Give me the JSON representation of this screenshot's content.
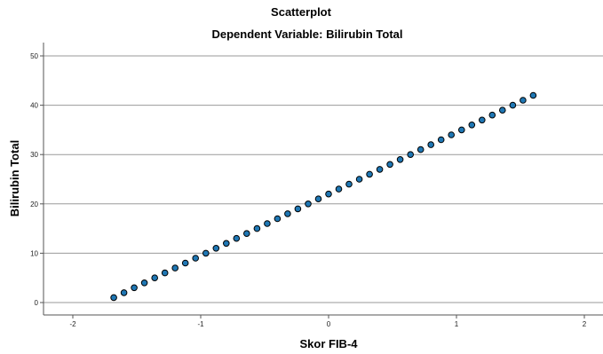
{
  "chart_data": {
    "type": "scatter",
    "title": "Scatterplot",
    "subtitle": "Dependent Variable: Bilirubin Total",
    "xlabel": "Skor FIB-4",
    "ylabel": "Bilirubin Total",
    "xlim": [
      -2,
      2
    ],
    "ylim": [
      0,
      50
    ],
    "xticks": [
      -2,
      -1,
      0,
      1,
      2
    ],
    "yticks": [
      0,
      10,
      20,
      30,
      40,
      50
    ],
    "grid": {
      "y": true,
      "x": false
    },
    "legend": "none",
    "series": [
      {
        "color": "#1f77b4",
        "edge_color": "#000000",
        "points": [
          {
            "x": -1.68,
            "y": 1
          },
          {
            "x": -1.6,
            "y": 2
          },
          {
            "x": -1.52,
            "y": 3
          },
          {
            "x": -1.44,
            "y": 4
          },
          {
            "x": -1.36,
            "y": 5
          },
          {
            "x": -1.28,
            "y": 6
          },
          {
            "x": -1.2,
            "y": 7
          },
          {
            "x": -1.12,
            "y": 8
          },
          {
            "x": -1.04,
            "y": 9
          },
          {
            "x": -0.96,
            "y": 10
          },
          {
            "x": -0.88,
            "y": 11
          },
          {
            "x": -0.8,
            "y": 12
          },
          {
            "x": -0.72,
            "y": 13
          },
          {
            "x": -0.64,
            "y": 14
          },
          {
            "x": -0.56,
            "y": 15
          },
          {
            "x": -0.48,
            "y": 16
          },
          {
            "x": -0.4,
            "y": 17
          },
          {
            "x": -0.32,
            "y": 18
          },
          {
            "x": -0.24,
            "y": 19
          },
          {
            "x": -0.16,
            "y": 20
          },
          {
            "x": -0.08,
            "y": 21
          },
          {
            "x": 0.0,
            "y": 22
          },
          {
            "x": 0.08,
            "y": 23
          },
          {
            "x": 0.16,
            "y": 24
          },
          {
            "x": 0.24,
            "y": 25
          },
          {
            "x": 0.32,
            "y": 26
          },
          {
            "x": 0.4,
            "y": 27
          },
          {
            "x": 0.48,
            "y": 28
          },
          {
            "x": 0.56,
            "y": 29
          },
          {
            "x": 0.64,
            "y": 30
          },
          {
            "x": 0.72,
            "y": 31
          },
          {
            "x": 0.8,
            "y": 32
          },
          {
            "x": 0.88,
            "y": 33
          },
          {
            "x": 0.96,
            "y": 34
          },
          {
            "x": 1.04,
            "y": 35
          },
          {
            "x": 1.12,
            "y": 36
          },
          {
            "x": 1.2,
            "y": 37
          },
          {
            "x": 1.28,
            "y": 38
          },
          {
            "x": 1.36,
            "y": 39
          },
          {
            "x": 1.44,
            "y": 40
          },
          {
            "x": 1.52,
            "y": 41
          },
          {
            "x": 1.6,
            "y": 42
          }
        ]
      }
    ]
  }
}
